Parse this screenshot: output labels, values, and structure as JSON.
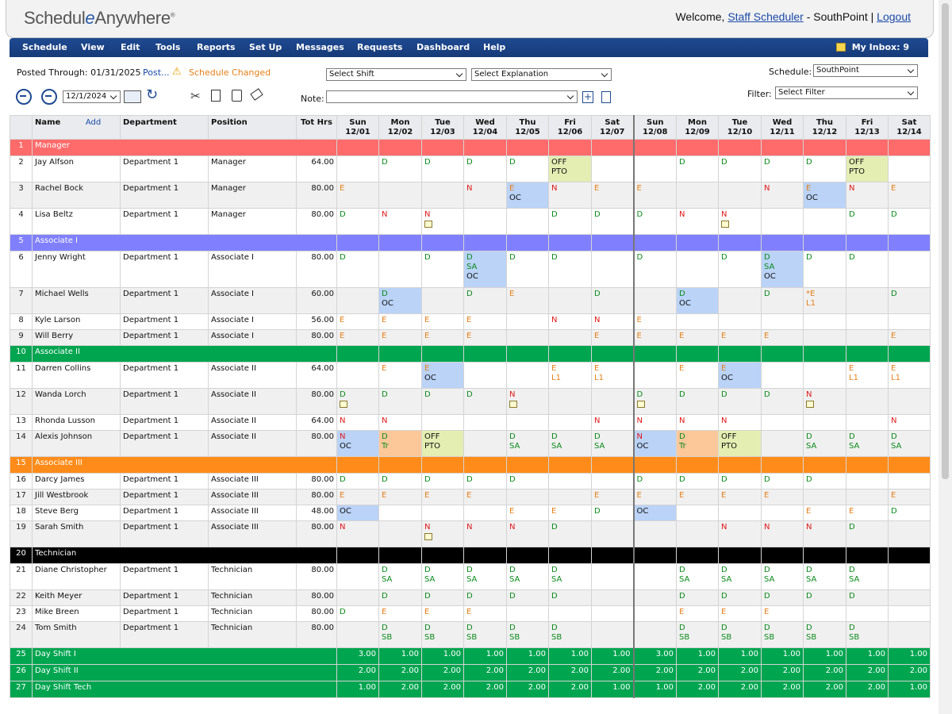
{
  "header": {
    "logo_pre": "Schedul",
    "logo_e": "e",
    "logo_post": "Anywhere",
    "logo_reg": "®",
    "welcome": "Welcome,",
    "user": "Staff Scheduler",
    "site_sep": " - SouthPoint | ",
    "logout": "Logout"
  },
  "menu": [
    "Schedule",
    "View",
    "Edit",
    "Tools",
    "Reports",
    "Set Up",
    "Messages",
    "Requests",
    "Dashboard",
    "Help"
  ],
  "inbox": "My Inbox: 9",
  "toolbar": {
    "posted": "Posted Through: 01/31/2025",
    "post": "Post...",
    "changed": "Schedule Changed",
    "shift_select": "Select Shift",
    "expl_select": "Select Explanation",
    "schedule_label": "Schedule:",
    "schedule_value": "SouthPoint",
    "filter_label": "Filter:",
    "filter_value": "Select Filter",
    "date_value": "12/1/2024",
    "note_label": "Note:"
  },
  "columns": {
    "name": "Name",
    "add": "Add",
    "department": "Department",
    "position": "Position",
    "tothrs": "Tot Hrs"
  },
  "days": [
    [
      "Sun",
      "12/01"
    ],
    [
      "Mon",
      "12/02"
    ],
    [
      "Tue",
      "12/03"
    ],
    [
      "Wed",
      "12/04"
    ],
    [
      "Thu",
      "12/05"
    ],
    [
      "Fri",
      "12/06"
    ],
    [
      "Sat",
      "12/07"
    ],
    [
      "Sun",
      "12/08"
    ],
    [
      "Mon",
      "12/09"
    ],
    [
      "Tue",
      "12/10"
    ],
    [
      "Wed",
      "12/11"
    ],
    [
      "Thu",
      "12/12"
    ],
    [
      "Fri",
      "12/13"
    ],
    [
      "Sat",
      "12/14"
    ]
  ],
  "colors": {
    "manager": "#ff6b6b",
    "assoc1": "#8080ff",
    "assoc2": "#00a550",
    "assoc3": "#ff8c1a",
    "tech": "#000000",
    "summary": "#00a550"
  },
  "rows": [
    {
      "t": "g",
      "n": "1",
      "label": "Manager",
      "color": "#ff6b6b"
    },
    {
      "n": "2",
      "name": "Jay Alfson",
      "dept": "Department 1",
      "pos": "Manager",
      "hrs": "64.00",
      "cells": [
        "",
        "D",
        "D",
        "D",
        "D",
        "OFF|PTO",
        "",
        "",
        "D",
        "D",
        "D",
        "D",
        "OFF|PTO",
        ""
      ]
    },
    {
      "n": "3",
      "name": "Rachel Bock",
      "dept": "Department 1",
      "pos": "Manager",
      "hrs": "80.00",
      "cells": [
        "E",
        "",
        "",
        "N",
        "E|OC",
        "N",
        "E",
        "E",
        "",
        "",
        "N",
        "E|OC",
        "N",
        "E"
      ]
    },
    {
      "n": "4",
      "name": "Lisa Beltz",
      "dept": "Department 1",
      "pos": "Manager",
      "hrs": "80.00",
      "cells": [
        "D",
        "N",
        "N|@",
        "",
        "",
        "D",
        "D",
        "D",
        "N",
        "N|@",
        "",
        "",
        "D",
        "D"
      ]
    },
    {
      "t": "g",
      "n": "5",
      "label": "Associate I",
      "color": "#8080ff"
    },
    {
      "n": "6",
      "name": "Jenny Wright",
      "dept": "Department 1",
      "pos": "Associate I",
      "hrs": "80.00",
      "cells": [
        "D",
        "",
        "D",
        "D|SA|OC",
        "D",
        "D",
        "",
        "D",
        "",
        "D",
        "D|SA|OC",
        "D",
        "D",
        ""
      ]
    },
    {
      "n": "7",
      "name": "Michael Wells",
      "dept": "Department 1",
      "pos": "Associate I",
      "hrs": "60.00",
      "cells": [
        "",
        "D|OC",
        "",
        "D",
        "E",
        "",
        "D",
        "",
        "D|OC",
        "",
        "D",
        "*E|L1",
        "",
        "D"
      ]
    },
    {
      "n": "8",
      "name": "Kyle Larson",
      "dept": "Department 1",
      "pos": "Associate I",
      "hrs": "56.00",
      "cells": [
        "E",
        "E",
        "E",
        "E",
        "",
        "N",
        "N",
        "E",
        "",
        "",
        "",
        "",
        "",
        ""
      ]
    },
    {
      "n": "9",
      "name": "Will Berry",
      "dept": "Department 1",
      "pos": "Associate I",
      "hrs": "80.00",
      "cells": [
        "E",
        "E",
        "E",
        "E",
        "",
        "",
        "E",
        "E",
        "E",
        "E",
        "E",
        "",
        "",
        "E"
      ]
    },
    {
      "t": "g",
      "n": "10",
      "label": "Associate II",
      "color": "#00a550"
    },
    {
      "n": "11",
      "name": "Darren Collins",
      "dept": "Department 1",
      "pos": "Associate II",
      "hrs": "64.00",
      "cells": [
        "",
        "E",
        "E|OC",
        "",
        "",
        "E|L1",
        "E|L1",
        "",
        "E",
        "E|OC",
        "",
        "",
        "E|L1",
        "E|L1"
      ]
    },
    {
      "n": "12",
      "name": "Wanda Lorch",
      "dept": "Department 1",
      "pos": "Associate II",
      "hrs": "80.00",
      "cells": [
        "D|@",
        "D",
        "D",
        "D",
        "N|@",
        "",
        "",
        "D|@",
        "D",
        "D",
        "D",
        "N|@",
        "",
        ""
      ]
    },
    {
      "n": "13",
      "name": "Rhonda Lusson",
      "dept": "Department 1",
      "pos": "Associate II",
      "hrs": "64.00",
      "cells": [
        "N",
        "N",
        "",
        "",
        "",
        "",
        "N",
        "N",
        "N",
        "N",
        "",
        "",
        "",
        "N"
      ]
    },
    {
      "n": "14",
      "name": "Alexis Johnson",
      "dept": "Department 1",
      "pos": "Associate II",
      "hrs": "80.00",
      "cells": [
        "N|OC",
        "D|Tr",
        "OFF|PTO",
        "",
        "D|SA",
        "D|SA",
        "D|SA",
        "N|OC",
        "D|Tr",
        "OFF|PTO",
        "",
        "D|SA",
        "D|SA",
        "D|SA"
      ]
    },
    {
      "t": "g",
      "n": "15",
      "label": "Associate III",
      "color": "#ff8c1a"
    },
    {
      "n": "16",
      "name": "Darcy James",
      "dept": "Department 1",
      "pos": "Associate III",
      "hrs": "80.00",
      "cells": [
        "D",
        "D",
        "D",
        "D",
        "D",
        "",
        "",
        "D",
        "D",
        "D",
        "D",
        "D",
        "",
        ""
      ]
    },
    {
      "n": "17",
      "name": "Jill Westbrook",
      "dept": "Department 1",
      "pos": "Associate III",
      "hrs": "80.00",
      "cells": [
        "E",
        "E",
        "E",
        "E",
        "",
        "",
        "E",
        "E",
        "E",
        "E",
        "E",
        "",
        "",
        "E"
      ]
    },
    {
      "n": "18",
      "name": "Steve Berg",
      "dept": "Department 1",
      "pos": "Associate III",
      "hrs": "48.00",
      "cells": [
        "OC",
        "",
        "",
        "",
        "E",
        "E",
        "D",
        "OC",
        "",
        "",
        "",
        "E",
        "E",
        "D"
      ]
    },
    {
      "n": "19",
      "name": "Sarah Smith",
      "dept": "Department 1",
      "pos": "Associate III",
      "hrs": "80.00",
      "cells": [
        "N",
        "",
        "N|@",
        "N",
        "N",
        "D",
        "",
        "",
        "",
        "N",
        "N",
        "N",
        "D",
        ""
      ]
    },
    {
      "t": "g",
      "n": "20",
      "label": "Technician",
      "color": "#000000"
    },
    {
      "n": "21",
      "name": "Diane Christopher",
      "dept": "Department 1",
      "pos": "Technician",
      "hrs": "80.00",
      "cells": [
        "",
        "D|SA",
        "D|SA",
        "D|SA",
        "D|SA",
        "D|SA",
        "",
        "",
        "D|SA",
        "D|SA",
        "D|SA",
        "D|SA",
        "D|SA",
        ""
      ]
    },
    {
      "n": "22",
      "name": "Keith Meyer",
      "dept": "Department 1",
      "pos": "Technician",
      "hrs": "80.00",
      "cells": [
        "",
        "D",
        "D",
        "D",
        "D",
        "D",
        "",
        "",
        "D",
        "D",
        "D",
        "D",
        "D",
        ""
      ]
    },
    {
      "n": "23",
      "name": "Mike Breen",
      "dept": "Department 1",
      "pos": "Technician",
      "hrs": "80.00",
      "cells": [
        "D",
        "E",
        "E",
        "E",
        "",
        "",
        "",
        "",
        "E",
        "E",
        "E",
        "",
        "",
        ""
      ]
    },
    {
      "n": "24",
      "name": "Tom Smith",
      "dept": "Department 1",
      "pos": "Technician",
      "hrs": "80.00",
      "cells": [
        "",
        "D|SB",
        "D|SB",
        "D|SB",
        "D|SB",
        "D|SB",
        "",
        "",
        "D|SB",
        "D|SB",
        "D|SB",
        "D|SB",
        "D|SB",
        ""
      ]
    },
    {
      "t": "s",
      "n": "25",
      "label": "Day Shift I",
      "vals": [
        "3.00",
        "1.00",
        "1.00",
        "1.00",
        "1.00",
        "1.00",
        "1.00",
        "3.00",
        "1.00",
        "1.00",
        "1.00",
        "1.00",
        "1.00",
        "1.00"
      ]
    },
    {
      "t": "s",
      "n": "26",
      "label": "Day Shift II",
      "vals": [
        "2.00",
        "2.00",
        "2.00",
        "2.00",
        "2.00",
        "2.00",
        "2.00",
        "2.00",
        "2.00",
        "2.00",
        "2.00",
        "2.00",
        "2.00",
        "2.00"
      ]
    },
    {
      "t": "s",
      "n": "27",
      "label": "Day Shift Tech",
      "vals": [
        "1.00",
        "2.00",
        "2.00",
        "2.00",
        "2.00",
        "2.00",
        "1.00",
        "1.00",
        "2.00",
        "2.00",
        "2.00",
        "2.00",
        "2.00",
        "1.00"
      ]
    }
  ]
}
